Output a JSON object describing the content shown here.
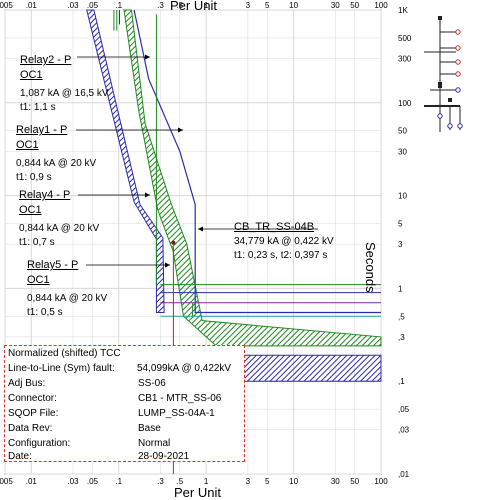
{
  "chart_data": {
    "type": "line",
    "xlabel": "Per Unit",
    "ylabel": "Seconds",
    "x_scale": "log",
    "y_scale": "log",
    "xlim": [
      0.005,
      100
    ],
    "ylim": [
      0.01,
      1000
    ],
    "x_ticks": [
      ".005",
      ".01",
      ".03",
      ".05",
      ".1",
      ".3",
      ".5",
      "1",
      "3",
      "5",
      "10",
      "30",
      "50",
      "100"
    ],
    "y_ticks": [
      "1K",
      "500",
      "300",
      "100",
      "50",
      "30",
      "10",
      "5",
      "3",
      "1",
      ",5",
      ",3",
      ",1",
      ",05",
      ",03",
      ",01"
    ],
    "series": [
      {
        "name": "Relay2 - P OC1",
        "color": "#2b2bb0"
      },
      {
        "name": "Relay1 - P OC1",
        "color": "#2b2bb0"
      },
      {
        "name": "Relay4 - P OC1",
        "color": "#1f8a1f"
      },
      {
        "name": "Relay5 - P OC1",
        "color": "#1f8a1f"
      },
      {
        "name": "CB_TR_SS-04B",
        "color": "#1f8a1f"
      }
    ],
    "labels": [
      {
        "title_1": "Relay2 - P",
        "title_2": "OC1",
        "line_1": "1,087 kA @ 16,5 kV",
        "line_2": "t1: 1,1 s"
      },
      {
        "title_1": "Relay1 - P",
        "title_2": "OC1",
        "line_1": "0,844 kA @ 20 kV",
        "line_2": "t1: 0,9 s"
      },
      {
        "title_1": "Relay4 - P",
        "title_2": "OC1",
        "line_1": "0,844 kA @ 20 kV",
        "line_2": "t1: 0,7 s"
      },
      {
        "title_1": "Relay5 - P",
        "title_2": "OC1",
        "line_1": "0,844 kA @ 20 kV",
        "line_2": "t1: 0,5 s"
      },
      {
        "title_1": "CB_TR_SS-04B",
        "line_1": "34,779 kA @ 0,422 kV",
        "line_2": "t1: 0,23 s, t2: 0,397 s"
      }
    ],
    "horizontal_levels_s": [
      {
        "t": 1.1,
        "color": "#1f8a1f"
      },
      {
        "t": 0.9,
        "color": "#2b2bb0"
      },
      {
        "t": 0.7,
        "color": "#7a2a9a"
      },
      {
        "t": 0.5,
        "color": "#20a0a0"
      }
    ],
    "fault_marker_pu": 0.422,
    "grid": true
  },
  "info_box": {
    "title": "Normalized (shifted) TCC",
    "fault_label": "Line-to-Line (Sym)  fault:",
    "fault_value": "54,099kA @ 0,422kV",
    "rows": [
      {
        "label": "Adj  Bus:",
        "value": "SS-06"
      },
      {
        "label": "Connector:",
        "value": "CB1 - MTR_SS-06"
      },
      {
        "label": "SQOP  File:",
        "value": "LUMP_SS-04A-1"
      },
      {
        "label": "Data  Rev:",
        "value": "Base"
      },
      {
        "label": "Configuration:",
        "value": "Normal"
      },
      {
        "label": "Date:",
        "value": "28-09-2021"
      }
    ]
  },
  "colors": {
    "relay_blue": "#2b2bb0",
    "relay_green": "#1f8a1f",
    "fault_red": "#cc2020",
    "grid": "#d8d8d8"
  }
}
